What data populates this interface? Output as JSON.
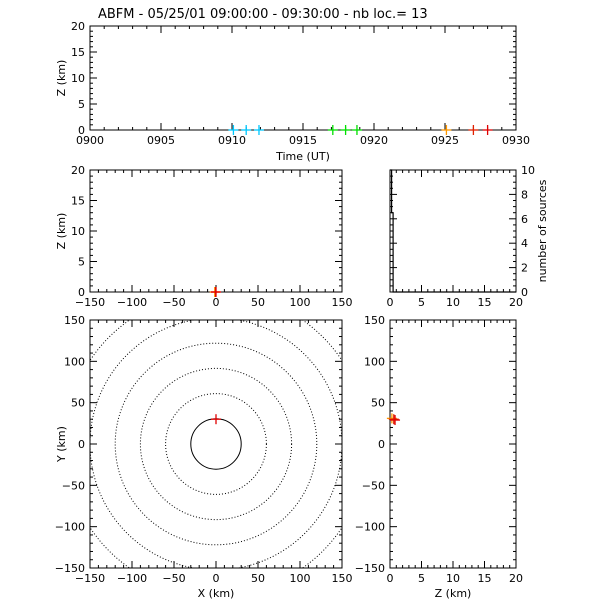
{
  "title": "ABFM - 05/25/01 09:00:00 - 09:30:00 - nb loc.=      13",
  "colors": {
    "frame": "#000000",
    "background": "#ffffff"
  },
  "chart_data": [
    {
      "id": "time_height",
      "type": "scatter",
      "xlabel": "Time (UT)",
      "ylabel": "Z (km)",
      "xlim": [
        900,
        930
      ],
      "ylim": [
        0,
        20
      ],
      "xticks": [
        "0900",
        "0905",
        "0910",
        "0915",
        "0920",
        "0925",
        "0930"
      ],
      "yticks": [
        "0",
        "5",
        "10",
        "15",
        "20"
      ],
      "points": [
        {
          "x": 910.1,
          "y": 0,
          "color": "#00c8ff"
        },
        {
          "x": 911.0,
          "y": 0,
          "color": "#00c8ff"
        },
        {
          "x": 911.9,
          "y": 0,
          "color": "#00c8ff"
        },
        {
          "x": 917.1,
          "y": 0,
          "color": "#00e000"
        },
        {
          "x": 918.0,
          "y": 0,
          "color": "#00e000"
        },
        {
          "x": 918.8,
          "y": 0,
          "color": "#00e000"
        },
        {
          "x": 925.1,
          "y": 0,
          "color": "#ff9900"
        },
        {
          "x": 927.0,
          "y": 0,
          "color": "#e02000"
        },
        {
          "x": 928.0,
          "y": 0,
          "color": "#e00000"
        }
      ]
    },
    {
      "id": "x_height",
      "type": "scatter",
      "xlabel": "",
      "ylabel": "Z (km)",
      "xlim": [
        -150,
        150
      ],
      "ylim": [
        0,
        20
      ],
      "xticks": [
        "−150",
        "−100",
        "−50",
        "0",
        "50",
        "100",
        "150"
      ],
      "yticks": [
        "0",
        "5",
        "10",
        "15",
        "20"
      ],
      "points": [
        {
          "x": -1.5,
          "y": 0,
          "color": "#ff9900"
        },
        {
          "x": -0.5,
          "y": 0,
          "color": "#e02000"
        },
        {
          "x": 0.0,
          "y": 0,
          "color": "#e00000"
        }
      ]
    },
    {
      "id": "height_histogram",
      "type": "line",
      "xlabel": "",
      "ylabel": "number of sources",
      "xlim": [
        0,
        20
      ],
      "ylim": [
        0,
        10
      ],
      "xticks": [
        "0",
        "5",
        "10",
        "15",
        "20"
      ],
      "yticks": [
        "0",
        "2",
        "4",
        "6",
        "8",
        "10"
      ],
      "x": [
        0,
        0.25,
        0.25,
        0.5,
        0.5,
        20
      ],
      "y": [
        10,
        10,
        6.5,
        6.5,
        0,
        0
      ]
    },
    {
      "id": "plan_view",
      "type": "scatter",
      "xlabel": "X (km)",
      "ylabel": "Y (km)",
      "xlim": [
        -150,
        150
      ],
      "ylim": [
        -150,
        150
      ],
      "xticks": [
        "−150",
        "−100",
        "−50",
        "0",
        "50",
        "100",
        "150"
      ],
      "yticks": [
        "−150",
        "−100",
        "−50",
        "0",
        "50",
        "100",
        "150"
      ],
      "range_rings_km": [
        30,
        60,
        90,
        120,
        150,
        180
      ],
      "points": [
        {
          "x": 0,
          "y": 30,
          "color": "#e00000"
        }
      ]
    },
    {
      "id": "height_y",
      "type": "scatter",
      "xlabel": "Z (km)",
      "ylabel": "",
      "xlim": [
        0,
        20
      ],
      "ylim": [
        -150,
        150
      ],
      "xticks": [
        "0",
        "5",
        "10",
        "15",
        "20"
      ],
      "yticks": [
        "−150",
        "−100",
        "−50",
        "0",
        "50",
        "100",
        "150"
      ],
      "points": [
        {
          "x": 0.3,
          "y": 31,
          "color": "#ff9900"
        },
        {
          "x": 0.6,
          "y": 30,
          "color": "#e02000"
        },
        {
          "x": 0.8,
          "y": 29,
          "color": "#e00000"
        }
      ]
    }
  ]
}
